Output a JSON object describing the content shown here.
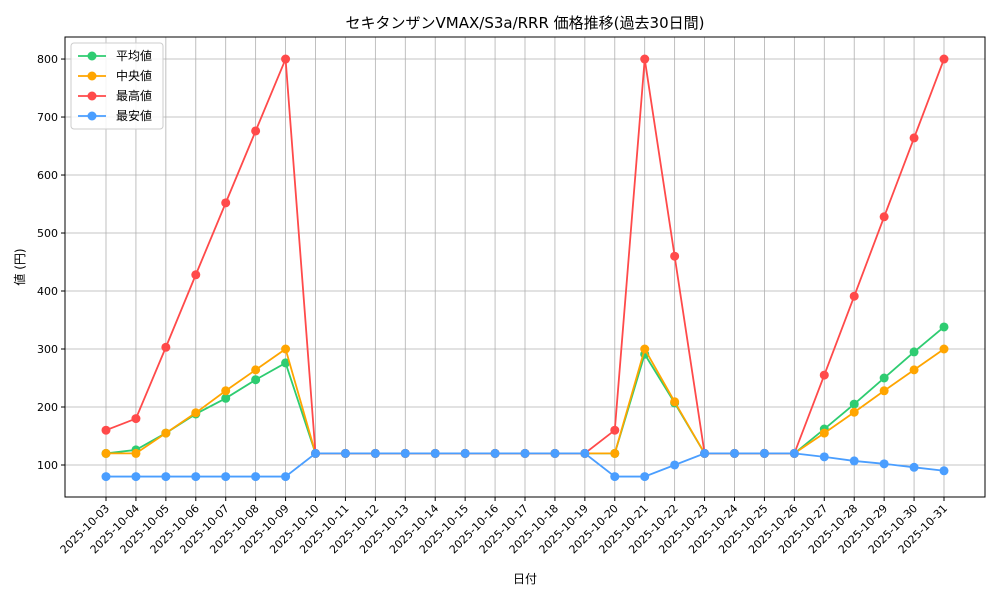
{
  "chart_data": {
    "type": "line",
    "title": "セキタンザンVMAX/S3a/RRR 価格推移(過去30日間)",
    "xlabel": "日付",
    "ylabel": "値 (円)",
    "ylim": [
      44.8,
      838
    ],
    "yticks": [
      100,
      200,
      300,
      400,
      500,
      600,
      700,
      800
    ],
    "grid": true,
    "legend_position": "top-left",
    "x": [
      "2025-10-03",
      "2025-10-04",
      "2025-10-05",
      "2025-10-06",
      "2025-10-07",
      "2025-10-08",
      "2025-10-09",
      "2025-10-10",
      "2025-10-11",
      "2025-10-12",
      "2025-10-13",
      "2025-10-14",
      "2025-10-15",
      "2025-10-16",
      "2025-10-17",
      "2025-10-18",
      "2025-10-19",
      "2025-10-20",
      "2025-10-21",
      "2025-10-22",
      "2025-10-23",
      "2025-10-24",
      "2025-10-25",
      "2025-10-26",
      "2025-10-27",
      "2025-10-28",
      "2025-10-29",
      "2025-10-30",
      "2025-10-31"
    ],
    "series": [
      {
        "name": "平均値",
        "color": "#2ecc71",
        "values": [
          120,
          126,
          155,
          188,
          215,
          247,
          276,
          120,
          120,
          120,
          120,
          120,
          120,
          120,
          120,
          120,
          120,
          120,
          291,
          207,
          120,
          120,
          120,
          120,
          162,
          205,
          250,
          295,
          338
        ]
      },
      {
        "name": "中央値",
        "color": "#ffa500",
        "values": [
          120,
          120,
          155,
          190,
          228,
          264,
          300,
          120,
          120,
          120,
          120,
          120,
          120,
          120,
          120,
          120,
          120,
          120,
          300,
          209,
          120,
          120,
          120,
          120,
          155,
          191,
          228,
          264,
          300
        ]
      },
      {
        "name": "最高値",
        "color": "#ff4a4a",
        "values": [
          160,
          180,
          303,
          428,
          552,
          676,
          800,
          120,
          120,
          120,
          120,
          120,
          120,
          120,
          120,
          120,
          120,
          160,
          800,
          460,
          120,
          120,
          120,
          120,
          255,
          391,
          528,
          664,
          800
        ]
      },
      {
        "name": "最安値",
        "color": "#4a9eff",
        "values": [
          80,
          80,
          80,
          80,
          80,
          80,
          80,
          120,
          120,
          120,
          120,
          120,
          120,
          120,
          120,
          120,
          120,
          80,
          80,
          100,
          120,
          120,
          120,
          120,
          114,
          107,
          102,
          96,
          90
        ]
      }
    ]
  }
}
